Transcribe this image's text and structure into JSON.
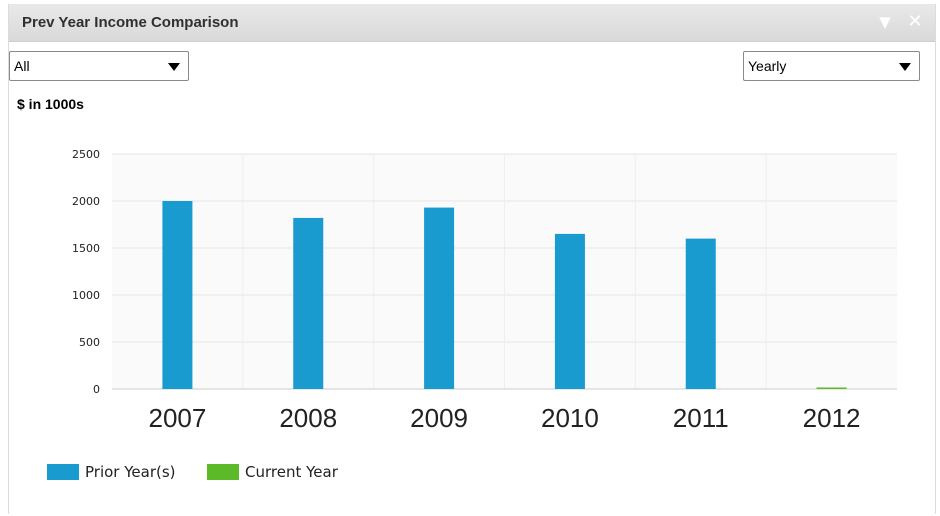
{
  "window": {
    "title": "Prev Year Income Comparison",
    "collapse_icon": "triangle-down-icon",
    "close_icon": "close-icon"
  },
  "filters": {
    "region_selected": "All",
    "period_selected": "Yearly"
  },
  "chart_data": {
    "type": "bar",
    "title": "Prev Year Income Comparison",
    "ylabel": "$ in 1000s",
    "xlabel": "",
    "categories": [
      "2007",
      "2008",
      "2009",
      "2010",
      "2011",
      "2012"
    ],
    "series": [
      {
        "name": "Prior Year(s)",
        "color": "#1a9bd0",
        "values": [
          2000,
          1820,
          1930,
          1650,
          1600,
          null
        ]
      },
      {
        "name": "Current Year",
        "color": "#5cba28",
        "values": [
          null,
          null,
          null,
          null,
          null,
          15
        ]
      }
    ],
    "ylim": [
      0,
      2500
    ],
    "yticks": [
      "0",
      "500",
      "1000",
      "1500",
      "2000",
      "2500"
    ],
    "grid": true,
    "legend_position": "bottom-left"
  }
}
